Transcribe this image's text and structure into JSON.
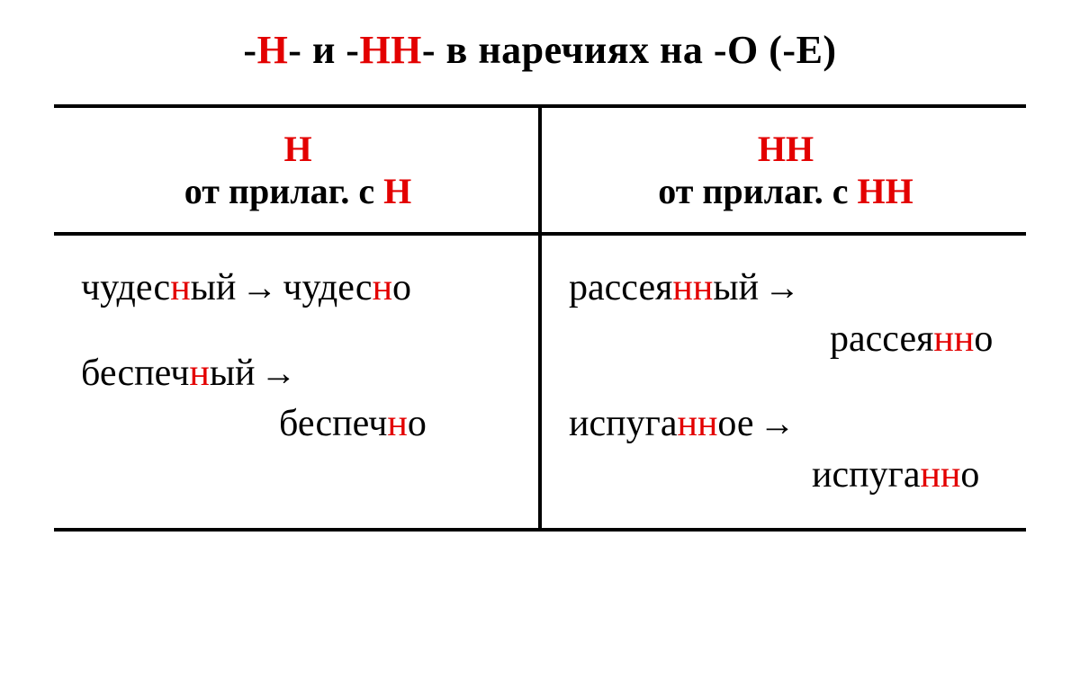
{
  "title": {
    "pre": "-",
    "h1": "Н",
    "mid1": "- и -",
    "h2": "НН",
    "mid2": "- в наречиях на -О (-Е)"
  },
  "colors": {
    "red": "#e30000",
    "black": "#000000",
    "bg": "#ffffff",
    "border": "#000000"
  },
  "typography": {
    "title_fontsize": 44,
    "header_fontsize": 40,
    "body_fontsize": 42,
    "font_family": "Georgia, Times New Roman, serif"
  },
  "table": {
    "border_width": 4,
    "columns": [
      {
        "header": {
          "line1": "Н",
          "line2_pre": "от прилаг. с ",
          "line2_hl": "Н"
        },
        "examples": [
          {
            "src": {
              "p1": "чудес",
              "hl1": "н",
              "p2": "ый"
            },
            "dst": {
              "p1": "чудес",
              "hl1": "н",
              "p2": "о"
            },
            "inline": true
          },
          {
            "src": {
              "p1": "беспеч",
              "hl1": "н",
              "p2": "ый"
            },
            "dst": {
              "p1": "беспеч",
              "hl1": "н",
              "p2": "о"
            },
            "inline": false,
            "indent_class": "indent1"
          }
        ]
      },
      {
        "header": {
          "line1": "НН",
          "line2_pre": "от прилаг. с ",
          "line2_hl": "НН"
        },
        "examples": [
          {
            "src": {
              "p1": "рассея",
              "hl1": "нн",
              "p2": "ый"
            },
            "dst": {
              "p1": "рассея",
              "hl1": "нн",
              "p2": "о"
            },
            "inline": false,
            "indent_class": "indent2"
          },
          {
            "src": {
              "p1": "испуга",
              "hl1": "нн",
              "p2": "ое"
            },
            "dst": {
              "p1": "испуга",
              "hl1": "нн",
              "p2": "о"
            },
            "inline": false,
            "indent_class": "indent4"
          }
        ]
      }
    ]
  },
  "arrow_glyph": "→"
}
